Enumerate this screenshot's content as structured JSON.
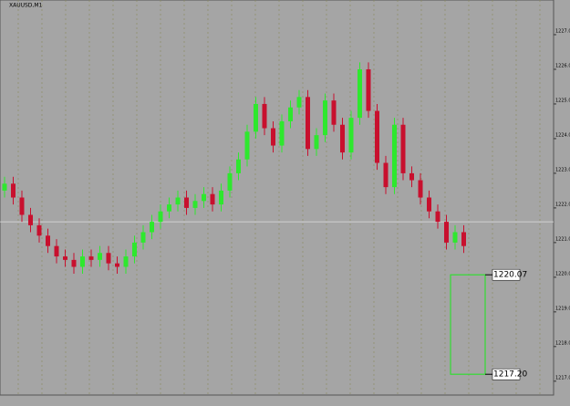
{
  "chart_data": {
    "type": "candlestick",
    "title": "XAUUSD,M1",
    "bull_color": "#2ee82e",
    "bear_color": "#c8102e",
    "background": "#a5a5a5",
    "ylim": [
      1216.6,
      1228.0
    ],
    "yticks": [
      {
        "value": 1217,
        "label": "1217.00"
      },
      {
        "value": 1218,
        "label": "1218.00"
      },
      {
        "value": 1219,
        "label": "1219.00"
      },
      {
        "value": 1220,
        "label": "1220.00"
      },
      {
        "value": 1221,
        "label": "1221.00"
      },
      {
        "value": 1222,
        "label": "1222.00"
      },
      {
        "value": 1223,
        "label": "1223.00"
      },
      {
        "value": 1224,
        "label": "1224.00"
      },
      {
        "value": 1225,
        "label": "1225.00"
      },
      {
        "value": 1226,
        "label": "1226.00"
      },
      {
        "value": 1227,
        "label": "1227.00"
      }
    ],
    "open": [
      1222.5,
      1222.7,
      1222.3,
      1221.8,
      1221.5,
      1221.2,
      1220.9,
      1220.6,
      1220.5,
      1220.3,
      1220.6,
      1220.5,
      1220.7,
      1220.4,
      1220.3,
      1220.6,
      1221.0,
      1221.3,
      1221.6,
      1221.9,
      1222.1,
      1222.3,
      1222.0,
      1222.2,
      1222.4,
      1222.1,
      1222.5,
      1223.0,
      1223.4,
      1224.2,
      1225.0,
      1224.3,
      1223.8,
      1224.5,
      1224.9,
      1225.2,
      1223.7,
      1224.1,
      1225.1,
      1224.4,
      1223.6,
      1224.6,
      1226.0,
      1224.8,
      1223.3,
      1222.6,
      1224.4,
      1223.0,
      1222.8,
      1222.3,
      1221.9,
      1221.6,
      1221.0,
      1221.3
    ],
    "high": [
      1222.9,
      1222.9,
      1222.5,
      1222.0,
      1221.7,
      1221.4,
      1221.1,
      1220.8,
      1220.7,
      1220.8,
      1220.8,
      1220.9,
      1220.9,
      1220.6,
      1220.8,
      1221.2,
      1221.5,
      1221.8,
      1222.1,
      1222.3,
      1222.5,
      1222.5,
      1222.4,
      1222.6,
      1222.6,
      1222.7,
      1223.2,
      1223.6,
      1224.4,
      1225.2,
      1225.2,
      1224.5,
      1224.7,
      1225.1,
      1225.4,
      1225.4,
      1224.3,
      1225.3,
      1225.3,
      1224.6,
      1224.8,
      1226.2,
      1226.2,
      1225.0,
      1223.5,
      1224.6,
      1224.6,
      1223.2,
      1223.0,
      1222.5,
      1222.1,
      1221.8,
      1221.5,
      1221.5
    ],
    "low": [
      1222.3,
      1222.1,
      1221.6,
      1221.3,
      1221.0,
      1220.7,
      1220.4,
      1220.3,
      1220.1,
      1220.1,
      1220.3,
      1220.3,
      1220.2,
      1220.1,
      1220.1,
      1220.4,
      1220.8,
      1221.1,
      1221.4,
      1221.7,
      1221.9,
      1221.8,
      1221.8,
      1222.0,
      1221.9,
      1221.9,
      1222.3,
      1222.8,
      1223.2,
      1224.0,
      1224.1,
      1223.6,
      1223.6,
      1224.3,
      1224.7,
      1223.5,
      1223.5,
      1223.9,
      1224.2,
      1223.4,
      1223.4,
      1224.4,
      1224.6,
      1223.1,
      1222.4,
      1222.4,
      1222.8,
      1222.6,
      1222.1,
      1221.7,
      1221.4,
      1220.8,
      1220.8,
      1220.7
    ],
    "close": [
      1222.7,
      1222.3,
      1221.8,
      1221.5,
      1221.2,
      1220.9,
      1220.6,
      1220.5,
      1220.3,
      1220.6,
      1220.5,
      1220.7,
      1220.4,
      1220.3,
      1220.6,
      1221.0,
      1221.3,
      1221.6,
      1221.9,
      1222.1,
      1222.3,
      1222.0,
      1222.2,
      1222.4,
      1222.1,
      1222.5,
      1223.0,
      1223.4,
      1224.2,
      1225.0,
      1224.3,
      1223.8,
      1224.5,
      1224.9,
      1225.2,
      1223.7,
      1224.1,
      1225.1,
      1224.4,
      1223.6,
      1224.6,
      1226.0,
      1224.8,
      1223.3,
      1222.6,
      1224.4,
      1223.0,
      1222.8,
      1222.3,
      1221.9,
      1221.6,
      1221.0,
      1221.3,
      1220.9
    ],
    "current_price": 1221.6,
    "box": {
      "color": "#33dd33",
      "top": 1220.07,
      "bottom": {
        "value": 1217.2,
        "label": "1217.20"
      }
    }
  }
}
